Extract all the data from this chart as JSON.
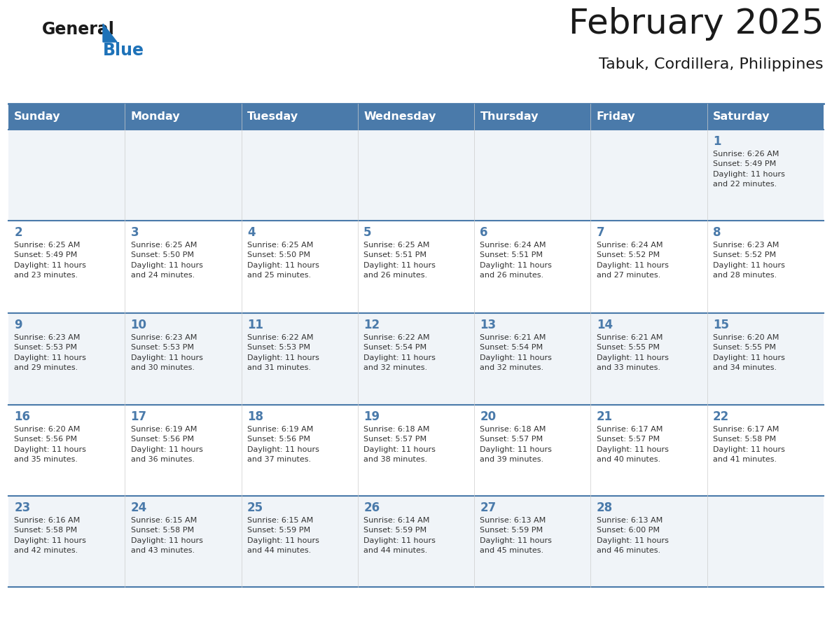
{
  "title": "February 2025",
  "subtitle": "Tabuk, Cordillera, Philippines",
  "days_of_week": [
    "Sunday",
    "Monday",
    "Tuesday",
    "Wednesday",
    "Thursday",
    "Friday",
    "Saturday"
  ],
  "header_bg": "#4a7aaa",
  "header_text": "#FFFFFF",
  "row_bg_light": "#f0f4f8",
  "row_bg_white": "#FFFFFF",
  "day_number_color": "#4a7aaa",
  "info_text_color": "#333333",
  "grid_line_color": "#4a7aaa",
  "title_color": "#1a1a1a",
  "logo_color_general": "#1a1a1a",
  "logo_color_blue": "#1E72B8",
  "logo_triangle_color": "#1E72B8",
  "calendar_data": [
    [
      null,
      null,
      null,
      null,
      null,
      null,
      {
        "day": "1",
        "sunrise": "6:26 AM",
        "sunset": "5:49 PM",
        "daylight": "11 hours\nand 22 minutes."
      }
    ],
    [
      {
        "day": "2",
        "sunrise": "6:25 AM",
        "sunset": "5:49 PM",
        "daylight": "11 hours\nand 23 minutes."
      },
      {
        "day": "3",
        "sunrise": "6:25 AM",
        "sunset": "5:50 PM",
        "daylight": "11 hours\nand 24 minutes."
      },
      {
        "day": "4",
        "sunrise": "6:25 AM",
        "sunset": "5:50 PM",
        "daylight": "11 hours\nand 25 minutes."
      },
      {
        "day": "5",
        "sunrise": "6:25 AM",
        "sunset": "5:51 PM",
        "daylight": "11 hours\nand 26 minutes."
      },
      {
        "day": "6",
        "sunrise": "6:24 AM",
        "sunset": "5:51 PM",
        "daylight": "11 hours\nand 26 minutes."
      },
      {
        "day": "7",
        "sunrise": "6:24 AM",
        "sunset": "5:52 PM",
        "daylight": "11 hours\nand 27 minutes."
      },
      {
        "day": "8",
        "sunrise": "6:23 AM",
        "sunset": "5:52 PM",
        "daylight": "11 hours\nand 28 minutes."
      }
    ],
    [
      {
        "day": "9",
        "sunrise": "6:23 AM",
        "sunset": "5:53 PM",
        "daylight": "11 hours\nand 29 minutes."
      },
      {
        "day": "10",
        "sunrise": "6:23 AM",
        "sunset": "5:53 PM",
        "daylight": "11 hours\nand 30 minutes."
      },
      {
        "day": "11",
        "sunrise": "6:22 AM",
        "sunset": "5:53 PM",
        "daylight": "11 hours\nand 31 minutes."
      },
      {
        "day": "12",
        "sunrise": "6:22 AM",
        "sunset": "5:54 PM",
        "daylight": "11 hours\nand 32 minutes."
      },
      {
        "day": "13",
        "sunrise": "6:21 AM",
        "sunset": "5:54 PM",
        "daylight": "11 hours\nand 32 minutes."
      },
      {
        "day": "14",
        "sunrise": "6:21 AM",
        "sunset": "5:55 PM",
        "daylight": "11 hours\nand 33 minutes."
      },
      {
        "day": "15",
        "sunrise": "6:20 AM",
        "sunset": "5:55 PM",
        "daylight": "11 hours\nand 34 minutes."
      }
    ],
    [
      {
        "day": "16",
        "sunrise": "6:20 AM",
        "sunset": "5:56 PM",
        "daylight": "11 hours\nand 35 minutes."
      },
      {
        "day": "17",
        "sunrise": "6:19 AM",
        "sunset": "5:56 PM",
        "daylight": "11 hours\nand 36 minutes."
      },
      {
        "day": "18",
        "sunrise": "6:19 AM",
        "sunset": "5:56 PM",
        "daylight": "11 hours\nand 37 minutes."
      },
      {
        "day": "19",
        "sunrise": "6:18 AM",
        "sunset": "5:57 PM",
        "daylight": "11 hours\nand 38 minutes."
      },
      {
        "day": "20",
        "sunrise": "6:18 AM",
        "sunset": "5:57 PM",
        "daylight": "11 hours\nand 39 minutes."
      },
      {
        "day": "21",
        "sunrise": "6:17 AM",
        "sunset": "5:57 PM",
        "daylight": "11 hours\nand 40 minutes."
      },
      {
        "day": "22",
        "sunrise": "6:17 AM",
        "sunset": "5:58 PM",
        "daylight": "11 hours\nand 41 minutes."
      }
    ],
    [
      {
        "day": "23",
        "sunrise": "6:16 AM",
        "sunset": "5:58 PM",
        "daylight": "11 hours\nand 42 minutes."
      },
      {
        "day": "24",
        "sunrise": "6:15 AM",
        "sunset": "5:58 PM",
        "daylight": "11 hours\nand 43 minutes."
      },
      {
        "day": "25",
        "sunrise": "6:15 AM",
        "sunset": "5:59 PM",
        "daylight": "11 hours\nand 44 minutes."
      },
      {
        "day": "26",
        "sunrise": "6:14 AM",
        "sunset": "5:59 PM",
        "daylight": "11 hours\nand 44 minutes."
      },
      {
        "day": "27",
        "sunrise": "6:13 AM",
        "sunset": "5:59 PM",
        "daylight": "11 hours\nand 45 minutes."
      },
      {
        "day": "28",
        "sunrise": "6:13 AM",
        "sunset": "6:00 PM",
        "daylight": "11 hours\nand 46 minutes."
      },
      null
    ]
  ]
}
